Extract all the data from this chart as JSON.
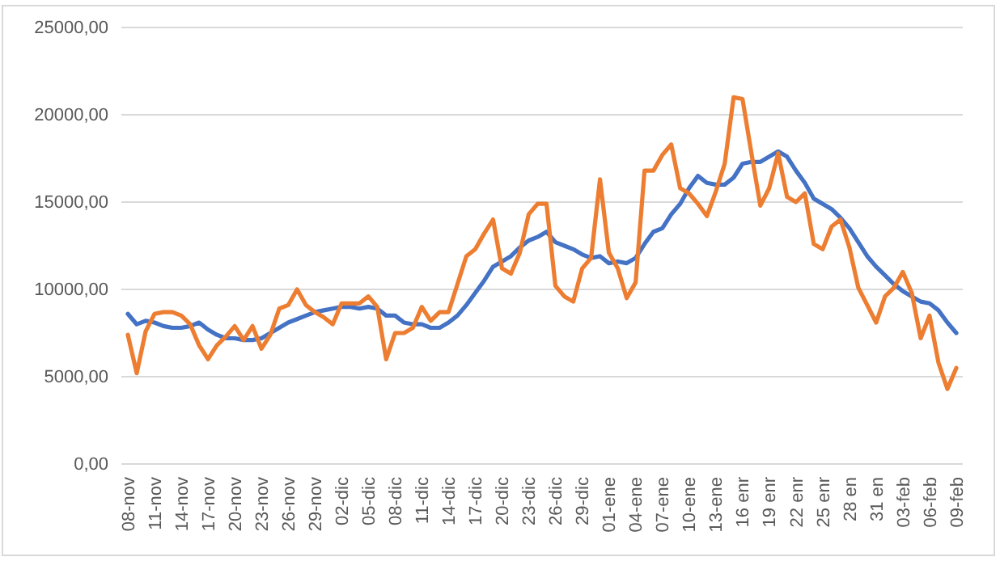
{
  "chart_data": {
    "type": "line",
    "categories": [
      "08-nov",
      null,
      null,
      "11-nov",
      null,
      null,
      "14-nov",
      null,
      null,
      "17-nov",
      null,
      null,
      "20-nov",
      null,
      null,
      "23-nov",
      null,
      null,
      "26-nov",
      null,
      null,
      "29-nov",
      null,
      null,
      "02-dic",
      null,
      null,
      "05-dic",
      null,
      null,
      "08-dic",
      null,
      null,
      "11-dic",
      null,
      null,
      "14-dic",
      null,
      null,
      "17-dic",
      null,
      null,
      "20-dic",
      null,
      null,
      "23-dic",
      null,
      null,
      "26-dic",
      null,
      null,
      "29-dic",
      null,
      null,
      "01-ene",
      null,
      null,
      "04-ene",
      null,
      null,
      "07-ene",
      null,
      null,
      "10-ene",
      null,
      null,
      "13-ene",
      null,
      null,
      "16 enr",
      null,
      null,
      "19 enr",
      null,
      null,
      "22 enr",
      null,
      null,
      "25 enr",
      null,
      null,
      "28 en",
      null,
      null,
      "31 en",
      null,
      null,
      "03-feb",
      null,
      null,
      "06-feb",
      null,
      null,
      "09-feb"
    ],
    "series": [
      {
        "color": "#4472c4",
        "values": [
          8600,
          8000,
          8200,
          8100,
          7900,
          7800,
          7800,
          7900,
          8100,
          7700,
          7400,
          7200,
          7200,
          7100,
          7100,
          7200,
          7500,
          7800,
          8100,
          8300,
          8500,
          8700,
          8800,
          8900,
          9000,
          9000,
          8900,
          9000,
          8900,
          8500,
          8500,
          8100,
          8000,
          8000,
          7800,
          7800,
          8100,
          8500,
          9100,
          9800,
          10500,
          11300,
          11600,
          11900,
          12400,
          12800,
          13000,
          13300,
          12700,
          12500,
          12300,
          12000,
          11800,
          11900,
          11500,
          11600,
          11500,
          11800,
          12600,
          13300,
          13500,
          14300,
          14900,
          15800,
          16500,
          16100,
          16000,
          16000,
          16400,
          17200,
          17300,
          17300,
          17600,
          17900,
          17600,
          16800,
          16100,
          15200,
          14900,
          14600,
          14100,
          13500,
          12700,
          11900,
          11300,
          10800,
          10300,
          9900,
          9600,
          9300,
          9200,
          8800,
          8100,
          7500
        ]
      },
      {
        "color": "#ed7d31",
        "values": [
          7400,
          5200,
          7600,
          8600,
          8700,
          8700,
          8500,
          8000,
          6800,
          6000,
          6800,
          7300,
          7900,
          7100,
          7900,
          6600,
          7400,
          8900,
          9100,
          10000,
          9100,
          8700,
          8400,
          8000,
          9200,
          9200,
          9200,
          9600,
          9000,
          6000,
          7500,
          7500,
          7800,
          9000,
          8200,
          8700,
          8700,
          10300,
          11900,
          12300,
          13200,
          14000,
          11200,
          10900,
          12100,
          14300,
          14900,
          14900,
          10200,
          9600,
          9300,
          11200,
          11800,
          16300,
          12100,
          11200,
          9500,
          10400,
          16800,
          16800,
          17700,
          18300,
          15800,
          15500,
          14900,
          14200,
          15600,
          17200,
          21000,
          20900,
          17800,
          14800,
          15800,
          17800,
          15300,
          15000,
          15500,
          12600,
          12300,
          13600,
          14000,
          12400,
          10100,
          9100,
          8100,
          9600,
          10100,
          11000,
          9800,
          7200,
          8500,
          5800,
          4300,
          5500
        ]
      }
    ],
    "ylim": [
      0,
      25000
    ],
    "yticks": [
      {
        "value": 0,
        "label": "0,00"
      },
      {
        "value": 5000,
        "label": "5000,00"
      },
      {
        "value": 10000,
        "label": "10000,00"
      },
      {
        "value": 15000,
        "label": "15000,00"
      },
      {
        "value": 20000,
        "label": "20000,00"
      },
      {
        "value": 25000,
        "label": "25000,00"
      }
    ],
    "grid": "y"
  }
}
